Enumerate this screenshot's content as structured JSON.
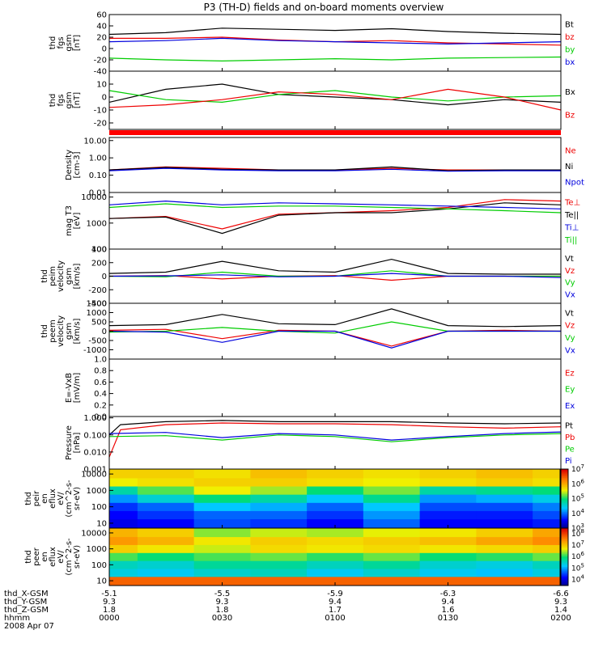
{
  "title": "P3 (TH-D) fields and on-board moments overview",
  "x_footer": {
    "rows": [
      {
        "label": "thd_X-GSM",
        "values": [
          "-5.1",
          "-5.5",
          "-5.9",
          "-6.3",
          "-6.6"
        ]
      },
      {
        "label": "thd_Y-GSM",
        "values": [
          "9.3",
          "9.3",
          "9.4",
          "9.4",
          "9.3"
        ]
      },
      {
        "label": "thd_Z-GSM",
        "values": [
          "1.8",
          "1.8",
          "1.7",
          "1.6",
          "1.4"
        ]
      },
      {
        "label": "hhmm",
        "values": [
          "0000",
          "0030",
          "0100",
          "0130",
          "0200"
        ]
      }
    ],
    "date": "2008 Apr 07"
  },
  "colors": {
    "black": "#000000",
    "red": "#ee0000",
    "green": "#00cc00",
    "blue": "#0000dd"
  },
  "chart_data": [
    {
      "type": "line",
      "ylabel": [
        "thd",
        "fgs",
        "gsm",
        "[nT]"
      ],
      "yscale": "linear",
      "ylim": [
        -40,
        60
      ],
      "ticks": [
        "60",
        "40",
        "20",
        "0",
        "-20",
        "-40"
      ],
      "legend": [
        "Bt",
        "bz",
        "by",
        "bx"
      ],
      "series": [
        {
          "name": "Bt",
          "color": "black",
          "x": [
            0.0,
            0.25,
            0.5,
            0.75,
            1.0,
            1.25,
            1.5,
            1.75,
            2.0
          ],
          "y": [
            25,
            28,
            36,
            34,
            32,
            35,
            30,
            27,
            25
          ]
        },
        {
          "name": "bz",
          "color": "red",
          "x": [
            0.0,
            0.25,
            0.5,
            0.75,
            1.0,
            1.25,
            1.5,
            1.75,
            2.0
          ],
          "y": [
            18,
            18,
            20,
            15,
            12,
            14,
            10,
            8,
            6
          ]
        },
        {
          "name": "by",
          "color": "green",
          "x": [
            0.0,
            0.25,
            0.5,
            0.75,
            1.0,
            1.25,
            1.5,
            1.75,
            2.0
          ],
          "y": [
            -17,
            -20,
            -22,
            -20,
            -18,
            -20,
            -17,
            -16,
            -15
          ]
        },
        {
          "name": "bx",
          "color": "blue",
          "x": [
            0.0,
            0.25,
            0.5,
            0.75,
            1.0,
            1.25,
            1.5,
            1.75,
            2.0
          ],
          "y": [
            12,
            14,
            18,
            14,
            12,
            10,
            8,
            10,
            12
          ]
        }
      ]
    },
    {
      "type": "line",
      "ylabel": [
        "thd",
        "fgs",
        "gsm",
        "[nT]"
      ],
      "yscale": "linear",
      "ylim": [
        -25,
        20
      ],
      "ticks": [
        "10",
        "0",
        "-10",
        "-20"
      ],
      "legend": [
        "Bx",
        "Bz"
      ],
      "series": [
        {
          "name": "Bx",
          "color": "black",
          "x": [
            0.0,
            0.25,
            0.5,
            0.75,
            1.0,
            1.25,
            1.5,
            1.75,
            2.0
          ],
          "y": [
            -4,
            6,
            10,
            2,
            0,
            -2,
            -6,
            -2,
            -4
          ]
        },
        {
          "name": "",
          "color": "green",
          "x": [
            0.0,
            0.25,
            0.5,
            0.75,
            1.0,
            1.25,
            1.5,
            1.75,
            2.0
          ],
          "y": [
            5,
            -2,
            -4,
            2,
            5,
            0,
            -3,
            0,
            1
          ]
        },
        {
          "name": "Bz",
          "color": "red",
          "x": [
            0.0,
            0.25,
            0.5,
            0.75,
            1.0,
            1.25,
            1.5,
            1.75,
            2.0
          ],
          "y": [
            -8,
            -6,
            -2,
            4,
            2,
            -2,
            6,
            0,
            -10
          ]
        }
      ]
    },
    {
      "type": "line",
      "ylabel": [
        "Density",
        "[cm-3]"
      ],
      "yscale": "log",
      "ylim": [
        0.01,
        15
      ],
      "ticks": [
        "10.00",
        "1.00",
        "0.10",
        "0.01"
      ],
      "legend": [
        "Ne",
        "Ni",
        "Npot"
      ],
      "series": [
        {
          "name": "Ne",
          "color": "red",
          "x": [
            0.0,
            0.25,
            0.5,
            0.75,
            1.0,
            1.25,
            1.5,
            1.75,
            2.0
          ],
          "y": [
            0.2,
            0.3,
            0.25,
            0.2,
            0.2,
            0.25,
            0.2,
            0.2,
            0.2
          ]
        },
        {
          "name": "Ni",
          "color": "black",
          "x": [
            0.0,
            0.25,
            0.5,
            0.75,
            1.0,
            1.25,
            1.5,
            1.75,
            2.0
          ],
          "y": [
            0.2,
            0.28,
            0.22,
            0.2,
            0.2,
            0.3,
            0.18,
            0.2,
            0.2
          ]
        },
        {
          "name": "Npot",
          "color": "blue",
          "x": [
            0.0,
            0.25,
            0.5,
            0.75,
            1.0,
            1.25,
            1.5,
            1.75,
            2.0
          ],
          "y": [
            0.18,
            0.25,
            0.2,
            0.18,
            0.18,
            0.22,
            0.17,
            0.18,
            0.18
          ]
        }
      ]
    },
    {
      "type": "line",
      "ylabel": [
        "mag T3",
        "[eV]"
      ],
      "yscale": "log",
      "ylim": [
        100,
        15000
      ],
      "ticks": [
        "10000",
        "1000",
        "100"
      ],
      "legend": [
        "Te⊥",
        "Te||",
        "Ti⊥",
        "Ti||"
      ],
      "series": [
        {
          "name": "Te⊥",
          "color": "red",
          "x": [
            0.0,
            0.25,
            0.5,
            0.75,
            1.0,
            1.25,
            1.5,
            1.75,
            2.0
          ],
          "y": [
            1500,
            1800,
            600,
            2200,
            2500,
            3000,
            4000,
            8000,
            7000
          ]
        },
        {
          "name": "Te||",
          "color": "black",
          "x": [
            0.0,
            0.25,
            0.5,
            0.75,
            1.0,
            1.25,
            1.5,
            1.75,
            2.0
          ],
          "y": [
            1500,
            1700,
            400,
            2000,
            2500,
            2500,
            3500,
            6000,
            5000
          ]
        },
        {
          "name": "Ti⊥",
          "color": "blue",
          "x": [
            0.0,
            0.25,
            0.5,
            0.75,
            1.0,
            1.25,
            1.5,
            1.75,
            2.0
          ],
          "y": [
            5000,
            7000,
            5000,
            6000,
            5500,
            5000,
            4500,
            4000,
            3500
          ]
        },
        {
          "name": "Ti||",
          "color": "green",
          "x": [
            0.0,
            0.25,
            0.5,
            0.75,
            1.0,
            1.25,
            1.5,
            1.75,
            2.0
          ],
          "y": [
            4000,
            5500,
            4000,
            4500,
            4500,
            4000,
            3500,
            3000,
            2500
          ]
        }
      ]
    },
    {
      "type": "line",
      "ylabel": [
        "thd",
        "peim",
        "velocity",
        "gsm",
        "[km/s]"
      ],
      "yscale": "linear",
      "ylim": [
        -400,
        400
      ],
      "ticks": [
        "400",
        "200",
        "0",
        "-200",
        "-400"
      ],
      "legend": [
        "Vt",
        "Vz",
        "Vy",
        "Vx"
      ],
      "series": [
        {
          "name": "Vt",
          "color": "black",
          "x": [
            0.0,
            0.25,
            0.5,
            0.75,
            1.0,
            1.25,
            1.5,
            1.75,
            2.0
          ],
          "y": [
            40,
            60,
            220,
            80,
            60,
            250,
            40,
            30,
            30
          ]
        },
        {
          "name": "Vz",
          "color": "red",
          "x": [
            0.0,
            0.25,
            0.5,
            0.75,
            1.0,
            1.25,
            1.5,
            1.75,
            2.0
          ],
          "y": [
            0,
            10,
            -40,
            0,
            10,
            -60,
            0,
            0,
            0
          ]
        },
        {
          "name": "Vy",
          "color": "green",
          "x": [
            0.0,
            0.25,
            0.5,
            0.75,
            1.0,
            1.25,
            1.5,
            1.75,
            2.0
          ],
          "y": [
            0,
            -10,
            60,
            0,
            0,
            80,
            0,
            0,
            0
          ]
        },
        {
          "name": "Vx",
          "color": "blue",
          "x": [
            0.0,
            0.25,
            0.5,
            0.75,
            1.0,
            1.25,
            1.5,
            1.75,
            2.0
          ],
          "y": [
            0,
            5,
            20,
            -10,
            0,
            40,
            0,
            0,
            -20
          ]
        }
      ]
    },
    {
      "type": "line",
      "ylabel": [
        "thd",
        "peem",
        "velocity",
        "gsm",
        "[km/s]"
      ],
      "yscale": "linear",
      "ylim": [
        -1500,
        1500
      ],
      "ticks": [
        "1500",
        "1000",
        "500",
        "0",
        "-500",
        "-1000"
      ],
      "legend": [
        "Vt",
        "Vz",
        "Vy",
        "Vx"
      ],
      "series": [
        {
          "name": "Vt",
          "color": "black",
          "x": [
            0.0,
            0.25,
            0.5,
            0.75,
            1.0,
            1.25,
            1.5,
            1.75,
            2.0
          ],
          "y": [
            300,
            350,
            900,
            400,
            350,
            1200,
            300,
            250,
            300
          ]
        },
        {
          "name": "Vz",
          "color": "red",
          "x": [
            0.0,
            0.25,
            0.5,
            0.75,
            1.0,
            1.25,
            1.5,
            1.75,
            2.0
          ],
          "y": [
            50,
            100,
            -400,
            50,
            0,
            -800,
            0,
            50,
            0
          ]
        },
        {
          "name": "Vy",
          "color": "green",
          "x": [
            0.0,
            0.25,
            0.5,
            0.75,
            1.0,
            1.25,
            1.5,
            1.75,
            2.0
          ],
          "y": [
            -50,
            0,
            200,
            0,
            -100,
            500,
            0,
            0,
            0
          ]
        },
        {
          "name": "Vx",
          "color": "blue",
          "x": [
            0.0,
            0.25,
            0.5,
            0.75,
            1.0,
            1.25,
            1.5,
            1.75,
            2.0
          ],
          "y": [
            0,
            -50,
            -600,
            0,
            0,
            -900,
            0,
            0,
            0
          ]
        }
      ]
    },
    {
      "type": "line",
      "ylabel": [
        "E=-VxB",
        "[mV/m]"
      ],
      "yscale": "linear",
      "ylim": [
        0,
        1
      ],
      "ticks": [
        "1.0",
        "0.8",
        "0.6",
        "0.4",
        "0.2",
        "0.0"
      ],
      "legend": [
        "Ez",
        "Ey",
        "Ex"
      ],
      "series": []
    },
    {
      "type": "line",
      "ylabel": [
        "Pressure",
        "[nPa]"
      ],
      "yscale": "log",
      "ylim": [
        0.001,
        1.2
      ],
      "ticks": [
        "1.000",
        "0.100",
        "0.010",
        "0.001"
      ],
      "legend": [
        "Pt",
        "Pb",
        "Pe",
        "Pi"
      ],
      "series": [
        {
          "name": "Pt",
          "color": "black",
          "x": [
            0.0,
            0.05,
            0.25,
            0.5,
            0.75,
            1.0,
            1.25,
            1.5,
            1.75,
            2.0
          ],
          "y": [
            0.1,
            0.4,
            0.6,
            0.7,
            0.6,
            0.6,
            0.6,
            0.5,
            0.45,
            0.5
          ]
        },
        {
          "name": "Pb",
          "color": "red",
          "x": [
            0.0,
            0.05,
            0.25,
            0.5,
            0.75,
            1.0,
            1.25,
            1.5,
            1.75,
            2.0
          ],
          "y": [
            0.005,
            0.2,
            0.4,
            0.5,
            0.45,
            0.45,
            0.4,
            0.3,
            0.25,
            0.3
          ]
        },
        {
          "name": "Pe",
          "color": "green",
          "x": [
            0.0,
            0.25,
            0.5,
            0.75,
            1.0,
            1.25,
            1.5,
            1.75,
            2.0
          ],
          "y": [
            0.08,
            0.09,
            0.05,
            0.1,
            0.08,
            0.04,
            0.07,
            0.1,
            0.12
          ]
        },
        {
          "name": "Pi",
          "color": "blue",
          "x": [
            0.0,
            0.25,
            0.5,
            0.75,
            1.0,
            1.25,
            1.5,
            1.75,
            2.0
          ],
          "y": [
            0.12,
            0.14,
            0.07,
            0.12,
            0.1,
            0.05,
            0.08,
            0.12,
            0.15
          ]
        }
      ]
    },
    {
      "type": "heatmap",
      "ylabel": [
        "thd",
        "peir",
        "en",
        "eflux",
        "eV/",
        "(cm^2-s-",
        "sr-eV)"
      ],
      "yscale": "log",
      "ylim": [
        5,
        20000
      ],
      "ticks": [
        "10000",
        "1000",
        "100",
        "10"
      ],
      "colorbar": {
        "ticks": [
          "10^7",
          "10^6",
          "10^5",
          "10^4",
          "10^3"
        ],
        "range": [
          1000,
          10000000
        ]
      },
      "energy_bands": [
        10000,
        3000,
        1000,
        300,
        100,
        30,
        10
      ],
      "time_hours": [
        0.0,
        0.25,
        0.5,
        0.75,
        1.0,
        1.25,
        1.5,
        1.75,
        2.0
      ],
      "log10_flux": [
        [
          5.8,
          5.8,
          5.7,
          5.9,
          5.8,
          5.7,
          5.8,
          5.9,
          5.8
        ],
        [
          5.6,
          5.7,
          5.8,
          5.8,
          5.7,
          5.6,
          5.7,
          5.8,
          5.7
        ],
        [
          4.8,
          5.2,
          5.6,
          5.4,
          5.0,
          5.3,
          4.8,
          4.9,
          5.0
        ],
        [
          4.2,
          4.6,
          5.0,
          4.8,
          4.4,
          4.9,
          4.2,
          4.3,
          4.5
        ],
        [
          3.8,
          4.0,
          4.4,
          4.3,
          4.0,
          4.4,
          3.9,
          3.9,
          4.1
        ],
        [
          3.6,
          3.8,
          4.0,
          4.0,
          3.8,
          4.2,
          3.7,
          3.7,
          3.9
        ],
        [
          3.5,
          3.6,
          3.9,
          3.8,
          3.6,
          4.0,
          3.6,
          3.6,
          3.7
        ]
      ]
    },
    {
      "type": "heatmap",
      "ylabel": [
        "thd",
        "peer",
        "en",
        "eflux",
        "eV/",
        "(cm^2-s-",
        "sr-eV)"
      ],
      "yscale": "log",
      "ylim": [
        5,
        20000
      ],
      "ticks": [
        "10000",
        "1000",
        "100",
        "10"
      ],
      "colorbar": {
        "ticks": [
          "10^8",
          "10^7",
          "10^6",
          "10^5",
          "10^4"
        ],
        "range": [
          3000,
          300000000
        ]
      },
      "energy_bands": [
        10000,
        3000,
        1000,
        300,
        100,
        30,
        10
      ],
      "time_hours": [
        0.0,
        0.25,
        0.5,
        0.75,
        1.0,
        1.25,
        1.5,
        1.75,
        2.0
      ],
      "log10_flux": [
        [
          7.2,
          7.0,
          6.4,
          6.6,
          6.5,
          6.7,
          6.8,
          7.0,
          7.3
        ],
        [
          7.4,
          7.2,
          6.8,
          7.0,
          6.9,
          7.0,
          7.1,
          7.3,
          7.5
        ],
        [
          7.0,
          6.8,
          6.6,
          6.9,
          6.8,
          6.9,
          6.8,
          6.9,
          7.0
        ],
        [
          6.2,
          6.0,
          6.2,
          6.3,
          6.1,
          6.3,
          6.0,
          6.1,
          6.3
        ],
        [
          5.6,
          5.5,
          5.8,
          5.8,
          5.6,
          5.8,
          5.5,
          5.4,
          5.6
        ],
        [
          5.4,
          5.3,
          5.5,
          5.6,
          5.3,
          5.5,
          5.3,
          5.2,
          5.4
        ],
        [
          7.8,
          7.8,
          7.8,
          7.8,
          7.8,
          7.8,
          7.8,
          7.8,
          7.8
        ]
      ]
    }
  ]
}
